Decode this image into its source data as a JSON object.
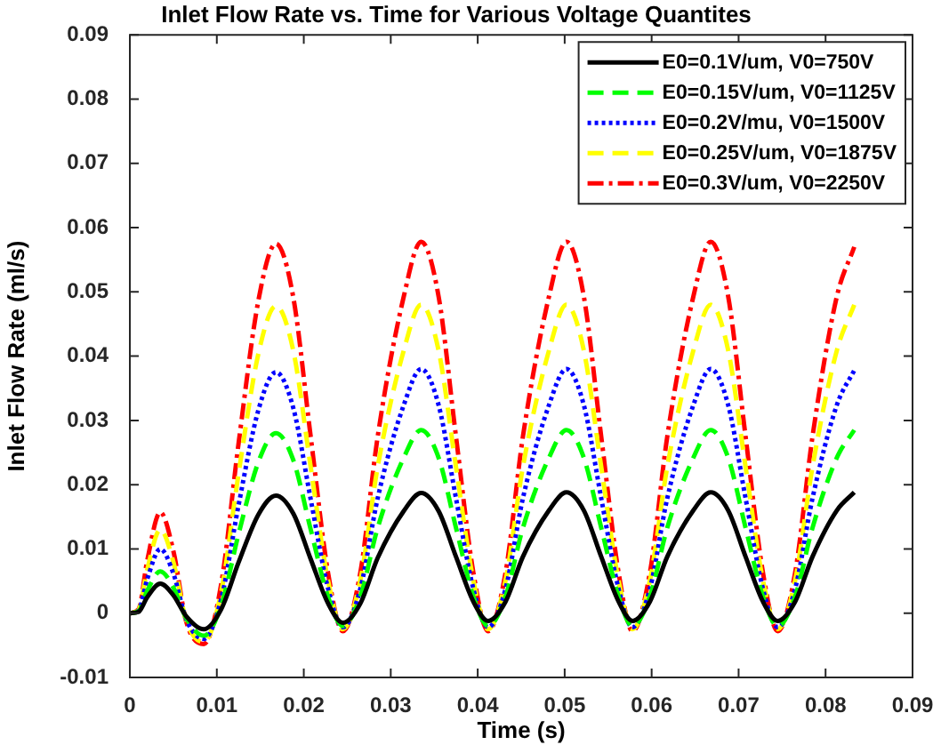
{
  "chart_data": {
    "type": "line",
    "title": "Inlet Flow Rate vs. Time for Various Voltage Quantites",
    "xlabel": "Time (s)",
    "ylabel": "Inlet Flow Rate (ml/s)",
    "x": [
      0,
      0.001,
      0.002,
      0.0035,
      0.005,
      0.0065,
      0.0085,
      0.0105,
      0.0125,
      0.0148,
      0.0168,
      0.0188,
      0.0208,
      0.0228,
      0.0245,
      0.0265,
      0.0285,
      0.0315,
      0.0335,
      0.0355,
      0.0375,
      0.0395,
      0.0412,
      0.0432,
      0.0452,
      0.0482,
      0.0502,
      0.0522,
      0.0542,
      0.0562,
      0.0578,
      0.0598,
      0.0618,
      0.0648,
      0.0668,
      0.0688,
      0.0708,
      0.0728,
      0.0745,
      0.0765,
      0.0785,
      0.0813,
      0.0833
    ],
    "series": [
      {
        "name": "E0=0.1V/um, V0=750V",
        "color": "#000000",
        "line_style": "solid",
        "values": [
          0,
          0.0002,
          0.0025,
          0.0046,
          0.0028,
          -0.0005,
          -0.0025,
          0.0006,
          0.0079,
          0.0154,
          0.0183,
          0.0155,
          0.0084,
          0.0015,
          -0.0015,
          0.0015,
          0.0086,
          0.0159,
          0.0187,
          0.0159,
          0.0088,
          0.0018,
          -0.0012,
          0.0018,
          0.0088,
          0.016,
          0.0188,
          0.016,
          0.0088,
          0.0018,
          -0.0012,
          0.0018,
          0.0088,
          0.016,
          0.0188,
          0.016,
          0.0088,
          0.0018,
          -0.0012,
          0.0018,
          0.0088,
          0.016,
          0.0188
        ]
      },
      {
        "name": "E0=0.15V/um, V0=1125V",
        "color": "#00ff00",
        "line_style": "dashed",
        "values": [
          0,
          0.0003,
          0.0035,
          0.0065,
          0.004,
          -0.0008,
          -0.0035,
          0.0012,
          0.0123,
          0.0236,
          0.028,
          0.0238,
          0.013,
          0.0025,
          -0.002,
          0.0026,
          0.0133,
          0.0242,
          0.0285,
          0.0242,
          0.0133,
          0.0026,
          -0.002,
          0.0026,
          0.0133,
          0.0242,
          0.0285,
          0.0242,
          0.0133,
          0.0026,
          -0.002,
          0.0026,
          0.0133,
          0.0242,
          0.0285,
          0.0242,
          0.0133,
          0.0026,
          -0.002,
          0.0026,
          0.0133,
          0.0242,
          0.0285
        ]
      },
      {
        "name": "E0=0.2V/mu, V0=1500V",
        "color": "#0000ff",
        "line_style": "dotted",
        "values": [
          0,
          0.0004,
          0.0053,
          0.01,
          0.0062,
          -0.001,
          -0.004,
          0.0022,
          0.0168,
          0.0317,
          0.0375,
          0.0319,
          0.0177,
          0.0038,
          -0.0022,
          0.0038,
          0.0179,
          0.0324,
          0.038,
          0.0324,
          0.0179,
          0.0038,
          -0.0022,
          0.0038,
          0.0179,
          0.0324,
          0.038,
          0.0324,
          0.0179,
          0.0038,
          -0.0022,
          0.0038,
          0.0179,
          0.0324,
          0.038,
          0.0324,
          0.0179,
          0.0038,
          -0.0022,
          0.0038,
          0.0179,
          0.0324,
          0.0378
        ]
      },
      {
        "name": "E0=0.25V/um, V0=1875V",
        "color": "#ffff00",
        "line_style": "dashed",
        "values": [
          0,
          0.0005,
          0.0068,
          0.013,
          0.008,
          -0.0012,
          -0.0045,
          0.0033,
          0.0217,
          0.0405,
          0.0478,
          0.0408,
          0.0227,
          0.005,
          -0.0025,
          0.0051,
          0.0228,
          0.0409,
          0.048,
          0.0409,
          0.0228,
          0.0051,
          -0.0025,
          0.0051,
          0.0228,
          0.0409,
          0.048,
          0.0409,
          0.0228,
          0.0051,
          -0.0025,
          0.0051,
          0.0228,
          0.0409,
          0.048,
          0.0409,
          0.0228,
          0.0051,
          -0.0025,
          0.0051,
          0.0228,
          0.0409,
          0.048
        ]
      },
      {
        "name": "E0=0.3V/um, V0=2250V",
        "color": "#ff0000",
        "line_style": "dashdot",
        "values": [
          0,
          0.0006,
          0.0082,
          0.0157,
          0.0097,
          -0.0014,
          -0.0048,
          0.0045,
          0.0264,
          0.0488,
          0.0575,
          0.0491,
          0.0274,
          0.0062,
          -0.0028,
          0.0063,
          0.0275,
          0.0493,
          0.0578,
          0.0493,
          0.0275,
          0.0063,
          -0.0028,
          0.0063,
          0.0275,
          0.0493,
          0.0578,
          0.0493,
          0.0275,
          0.0063,
          -0.0028,
          0.0063,
          0.0275,
          0.0493,
          0.0578,
          0.0493,
          0.0275,
          0.0063,
          -0.0028,
          0.0063,
          0.0275,
          0.0493,
          0.057
        ]
      }
    ],
    "xlim": [
      0,
      0.09
    ],
    "xticks": [
      0,
      0.01,
      0.02,
      0.03,
      0.04,
      0.05,
      0.06,
      0.07,
      0.08,
      0.09
    ],
    "ylim": [
      -0.01,
      0.09
    ],
    "yticks": [
      -0.01,
      0,
      0.01,
      0.02,
      0.03,
      0.04,
      0.05,
      0.06,
      0.07,
      0.08,
      0.09
    ],
    "grid": false,
    "legend": "top right",
    "marker": "none"
  }
}
